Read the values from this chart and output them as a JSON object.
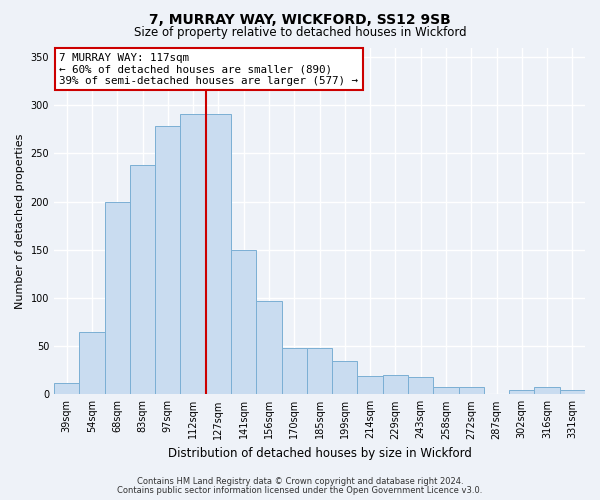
{
  "title": "7, MURRAY WAY, WICKFORD, SS12 9SB",
  "subtitle": "Size of property relative to detached houses in Wickford",
  "xlabel": "Distribution of detached houses by size in Wickford",
  "ylabel": "Number of detached properties",
  "bar_labels": [
    "39sqm",
    "54sqm",
    "68sqm",
    "83sqm",
    "97sqm",
    "112sqm",
    "127sqm",
    "141sqm",
    "156sqm",
    "170sqm",
    "185sqm",
    "199sqm",
    "214sqm",
    "229sqm",
    "243sqm",
    "258sqm",
    "272sqm",
    "287sqm",
    "302sqm",
    "316sqm",
    "331sqm"
  ],
  "bar_heights": [
    12,
    65,
    200,
    238,
    278,
    291,
    291,
    150,
    97,
    48,
    48,
    35,
    19,
    20,
    18,
    8,
    8,
    0,
    4,
    8,
    4
  ],
  "bar_color": "#c9dcf0",
  "bar_edge_color": "#7bafd4",
  "property_label": "7 MURRAY WAY: 117sqm",
  "annotation_line1": "← 60% of detached houses are smaller (890)",
  "annotation_line2": "39% of semi-detached houses are larger (577) →",
  "vline_x_index": 5.5,
  "vline_color": "#cc0000",
  "annotation_box_color": "#ffffff",
  "annotation_box_edge_color": "#cc0000",
  "ylim": [
    0,
    360
  ],
  "yticks": [
    0,
    50,
    100,
    150,
    200,
    250,
    300,
    350
  ],
  "footer_line1": "Contains HM Land Registry data © Crown copyright and database right 2024.",
  "footer_line2": "Contains public sector information licensed under the Open Government Licence v3.0.",
  "background_color": "#eef2f8",
  "grid_color": "#ffffff",
  "title_fontsize": 10,
  "subtitle_fontsize": 8.5,
  "ylabel_fontsize": 8,
  "xlabel_fontsize": 8.5,
  "tick_fontsize": 7,
  "footer_fontsize": 6
}
